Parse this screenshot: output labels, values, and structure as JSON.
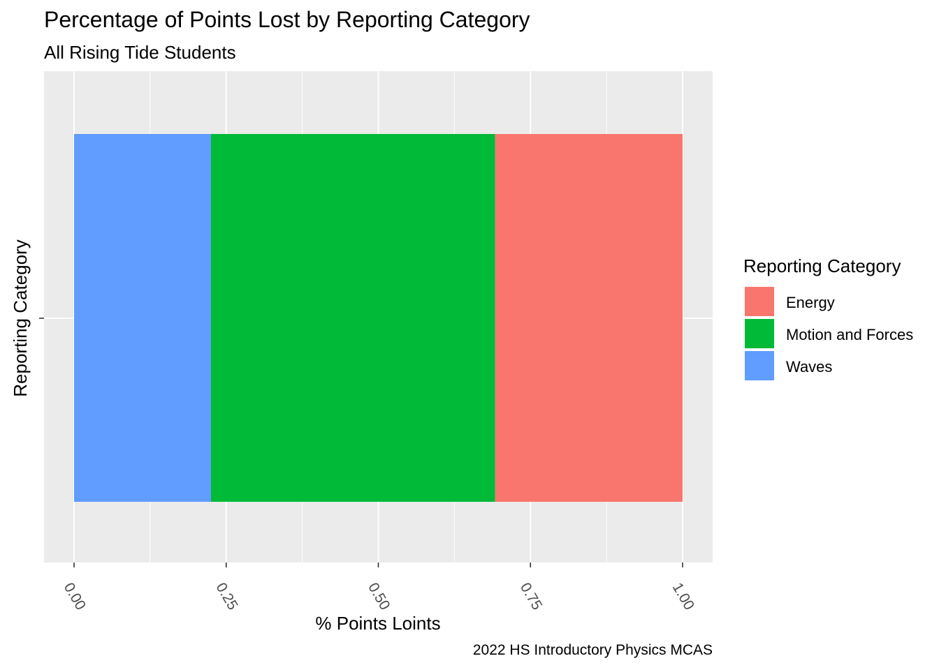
{
  "chart_data": {
    "type": "bar",
    "orientation": "horizontal",
    "stacked": true,
    "title": "Percentage of Points Lost by Reporting Category",
    "subtitle": "All Rising Tide Students",
    "caption": "2022 HS Introductory Physics MCAS",
    "xlabel": "% Points Loints",
    "ylabel": "Reporting Category",
    "xlim": [
      -0.1,
      1.05
    ],
    "xticks": [
      "0.00",
      "0.25",
      "0.50",
      "0.75",
      "1.00"
    ],
    "grid": true,
    "legend": {
      "title": "Reporting Category",
      "placement": "right",
      "entries": [
        "Energy",
        "Motion and Forces",
        "Waves"
      ]
    },
    "series": [
      {
        "name": "Waves",
        "start": 0.0,
        "end": 0.225,
        "value": 0.225,
        "color": "#619CFF"
      },
      {
        "name": "Motion and Forces",
        "start": 0.225,
        "end": 0.692,
        "value": 0.467,
        "color": "#00BA38"
      },
      {
        "name": "Energy",
        "start": 0.692,
        "end": 1.0,
        "value": 0.308,
        "color": "#F8766D"
      }
    ]
  }
}
